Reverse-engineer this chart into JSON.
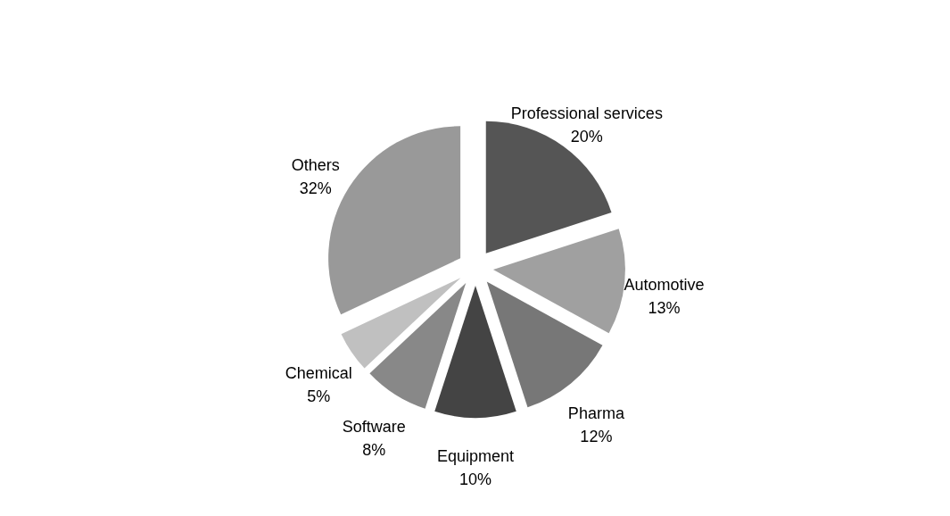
{
  "chart_data": {
    "type": "pie",
    "categories": [
      "Professional services",
      "Automotive",
      "Pharma",
      "Equipment",
      "Software",
      "Chemical",
      "Others"
    ],
    "values": [
      20,
      13,
      12,
      10,
      8,
      5,
      32
    ],
    "value_labels": [
      "20%",
      "13%",
      "12%",
      "10%",
      "8%",
      "5%",
      "32%"
    ],
    "colors": [
      "#555555",
      "#a0a0a0",
      "#777777",
      "#444444",
      "#888888",
      "#c0c0c0",
      "#999999"
    ]
  }
}
